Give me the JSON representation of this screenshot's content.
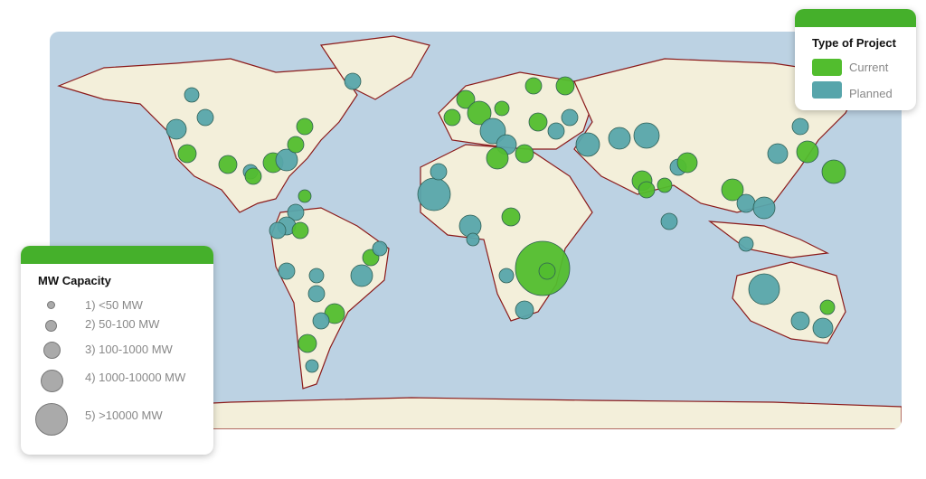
{
  "colors": {
    "current": "#52bd2e",
    "planned": "#57a5ab",
    "land": "#f3efda",
    "ocean": "#bcd2e3",
    "border": "#8b1a1a",
    "header": "#45b02b"
  },
  "type_legend": {
    "title": "Type of Project",
    "items": [
      {
        "label": "Current",
        "color": "#52bd2e"
      },
      {
        "label": "Planned",
        "color": "#57a5ab"
      }
    ]
  },
  "capacity_legend": {
    "title": "MW Capacity",
    "items": [
      {
        "label": "1)  <50 MW"
      },
      {
        "label": "2) 50-100 MW"
      },
      {
        "label": "3) 100-1000 MW"
      },
      {
        "label": "4) 1000-10000 MW"
      },
      {
        "label": "5) >10000 MW"
      }
    ]
  }
}
